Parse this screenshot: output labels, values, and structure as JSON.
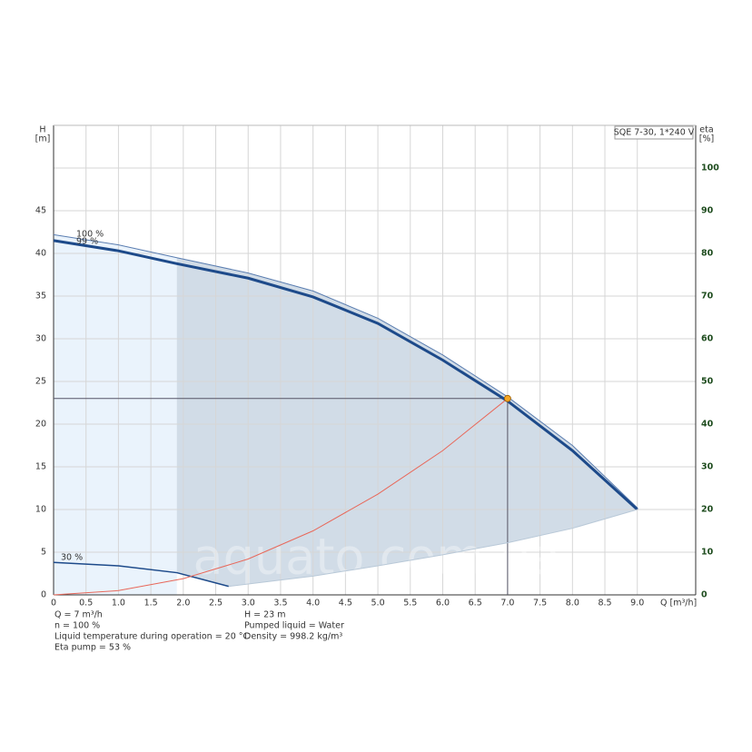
{
  "chart_data": {
    "type": "line",
    "title": "SQE 7-30, 1*240 V",
    "x_label": "Q [m³/h]",
    "y_label": [
      "H",
      "[m]"
    ],
    "y2_label": [
      "eta",
      "[%]"
    ],
    "xlim": [
      0,
      9.9
    ],
    "ylim": [
      0,
      55
    ],
    "y2lim": [
      0,
      110
    ],
    "xticks": [
      0,
      0.5,
      {
        "value": 1,
        "label": "1.0"
      },
      1.5,
      {
        "value": 2,
        "label": "2.0"
      },
      2.5,
      {
        "value": 3,
        "label": "3.0"
      },
      3.5,
      {
        "value": 4,
        "label": "4.0"
      },
      4.5,
      {
        "value": 5,
        "label": "5.0"
      },
      5.5,
      {
        "value": 6,
        "label": "6.0"
      },
      6.5,
      {
        "value": 7,
        "label": "7.0"
      },
      7.5,
      {
        "value": 8,
        "label": "8.0"
      },
      8.5,
      {
        "value": 9,
        "label": "9.0"
      }
    ],
    "yticks": [
      0,
      5,
      10,
      15,
      20,
      25,
      30,
      35,
      40,
      45
    ],
    "y2ticks": [
      0,
      10,
      20,
      30,
      40,
      50,
      60,
      70,
      80,
      90,
      100
    ],
    "grid": true,
    "series": [
      {
        "name": "100 %",
        "color": "#5a7db0",
        "line_width": 1,
        "x": [
          0,
          1,
          1.9,
          3,
          4,
          5,
          6,
          7,
          8,
          9
        ],
        "values": [
          42.2,
          41.0,
          39.5,
          37.7,
          35.6,
          32.4,
          28.1,
          23.2,
          17.5,
          10.2
        ]
      },
      {
        "name": "99 %",
        "color": "#1d4a8a",
        "line_width": 3,
        "x": [
          0,
          1,
          1.9,
          3,
          4,
          5,
          6,
          7,
          8,
          9
        ],
        "values": [
          41.5,
          40.3,
          38.8,
          37.1,
          34.9,
          31.8,
          27.5,
          22.7,
          16.9,
          10.0
        ]
      },
      {
        "name": "30 %",
        "color": "#1d4a8a",
        "line_width": 1.5,
        "x": [
          0,
          1,
          1.9,
          2.7
        ],
        "values": [
          3.8,
          3.4,
          2.6,
          1.0
        ]
      },
      {
        "color": "#c9d6e3",
        "line_width": 0,
        "x": [
          2.7,
          4,
          5,
          6,
          7,
          8,
          9
        ],
        "values": [
          1.0,
          2.2,
          3.4,
          4.7,
          6.1,
          7.8,
          10.0
        ]
      },
      {
        "color": "#e8685a",
        "line_width": 1,
        "x": [
          0,
          1,
          2,
          3,
          4,
          5,
          6,
          7
        ],
        "values": [
          0,
          0.5,
          1.9,
          4.2,
          7.5,
          11.8,
          16.9,
          23
        ]
      }
    ],
    "operating_point": {
      "x": 7,
      "y": 23,
      "color": "#f5a623"
    },
    "watermark": "aquato.com.ua",
    "info_left": [
      "Q = 7 m³/h",
      "n = 100 %",
      "Liquid temperature during operation = 20 °C",
      "Eta pump = 53 %"
    ],
    "info_right": [
      "H = 23 m",
      "Pumped liquid = Water",
      "Density = 998.2 kg/m³"
    ]
  }
}
